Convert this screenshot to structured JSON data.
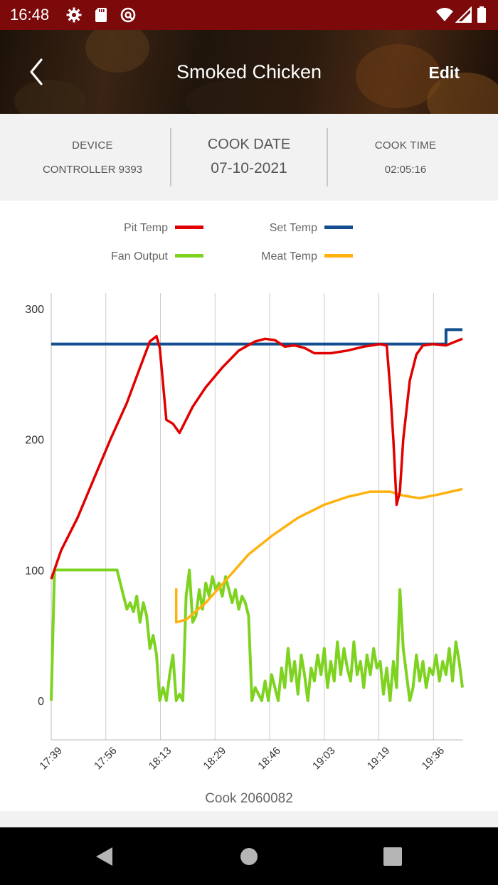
{
  "status_bar": {
    "time": "16:48"
  },
  "header": {
    "title": "Smoked Chicken",
    "edit_label": "Edit"
  },
  "info": {
    "device_label": "DEVICE",
    "device_value": "CONTROLLER 9393",
    "date_label": "COOK DATE",
    "date_value": "07-10-2021",
    "time_label": "COOK TIME",
    "time_value": "02:05:16"
  },
  "legend": [
    {
      "name": "Pit Temp",
      "color": "#e00000"
    },
    {
      "name": "Set Temp",
      "color": "#134f8f"
    },
    {
      "name": "Fan Output",
      "color": "#7ed321"
    },
    {
      "name": "Meat Temp",
      "color": "#ffb20f"
    }
  ],
  "chart_data": {
    "type": "line",
    "x_tick_labels": [
      "17:39",
      "17:56",
      "18:13",
      "18:29",
      "18:46",
      "19:03",
      "19:19",
      "19:36"
    ],
    "x_range_minutes": [
      0,
      125
    ],
    "y_ticks": [
      "0",
      "100",
      "200",
      "300"
    ],
    "ylim": [
      -30,
      312
    ],
    "grid": "vertical",
    "legend_position": "top",
    "series": [
      {
        "name": "Pit Temp",
        "color": "#e00000",
        "points": [
          [
            0,
            93
          ],
          [
            3,
            115
          ],
          [
            8,
            140
          ],
          [
            13,
            170
          ],
          [
            18,
            200
          ],
          [
            23,
            228
          ],
          [
            27,
            255
          ],
          [
            30,
            275
          ],
          [
            32,
            279
          ],
          [
            33,
            270
          ],
          [
            35,
            215
          ],
          [
            37,
            212
          ],
          [
            39,
            205
          ],
          [
            40,
            210
          ],
          [
            43,
            225
          ],
          [
            47,
            240
          ],
          [
            52,
            255
          ],
          [
            57,
            268
          ],
          [
            62,
            275
          ],
          [
            65,
            277
          ],
          [
            68,
            276
          ],
          [
            71,
            271
          ],
          [
            74,
            272
          ],
          [
            77,
            270
          ],
          [
            80,
            266
          ],
          [
            85,
            266
          ],
          [
            90,
            268
          ],
          [
            95,
            271
          ],
          [
            100,
            273
          ],
          [
            102,
            272
          ],
          [
            103,
            240
          ],
          [
            104,
            200
          ],
          [
            105,
            150
          ],
          [
            106,
            160
          ],
          [
            107,
            200
          ],
          [
            109,
            245
          ],
          [
            111,
            265
          ],
          [
            113,
            272
          ],
          [
            116,
            273
          ],
          [
            120,
            272
          ],
          [
            123,
            275
          ],
          [
            125,
            277
          ]
        ]
      },
      {
        "name": "Set Temp",
        "color": "#134f8f",
        "points": [
          [
            0,
            273
          ],
          [
            120,
            273
          ],
          [
            120,
            284
          ],
          [
            125,
            284
          ]
        ]
      },
      {
        "name": "Meat Temp",
        "color": "#ffb20f",
        "points": [
          [
            38,
            86
          ],
          [
            38,
            60
          ],
          [
            41,
            62
          ],
          [
            47,
            75
          ],
          [
            53,
            92
          ],
          [
            60,
            112
          ],
          [
            67,
            126
          ],
          [
            75,
            140
          ],
          [
            83,
            150
          ],
          [
            90,
            156
          ],
          [
            97,
            160
          ],
          [
            103,
            160
          ],
          [
            107,
            157
          ],
          [
            112,
            155
          ],
          [
            118,
            158
          ],
          [
            125,
            162
          ]
        ]
      },
      {
        "name": "Fan Output",
        "color": "#7ed321",
        "points": [
          [
            0,
            0
          ],
          [
            1,
            100
          ],
          [
            6,
            100
          ],
          [
            12,
            100
          ],
          [
            18,
            100
          ],
          [
            20,
            100
          ],
          [
            21,
            90
          ],
          [
            22,
            80
          ],
          [
            23,
            70
          ],
          [
            24,
            75
          ],
          [
            25,
            68
          ],
          [
            26,
            80
          ],
          [
            27,
            60
          ],
          [
            28,
            75
          ],
          [
            29,
            65
          ],
          [
            30,
            40
          ],
          [
            31,
            50
          ],
          [
            32,
            35
          ],
          [
            33,
            0
          ],
          [
            34,
            10
          ],
          [
            35,
            0
          ],
          [
            36,
            20
          ],
          [
            37,
            35
          ],
          [
            38,
            0
          ],
          [
            39,
            5
          ],
          [
            40,
            0
          ],
          [
            41,
            80
          ],
          [
            42,
            100
          ],
          [
            43,
            60
          ],
          [
            44,
            65
          ],
          [
            45,
            85
          ],
          [
            46,
            70
          ],
          [
            47,
            90
          ],
          [
            48,
            80
          ],
          [
            49,
            95
          ],
          [
            50,
            85
          ],
          [
            51,
            90
          ],
          [
            52,
            80
          ],
          [
            53,
            95
          ],
          [
            54,
            85
          ],
          [
            55,
            75
          ],
          [
            56,
            85
          ],
          [
            57,
            70
          ],
          [
            58,
            80
          ],
          [
            59,
            75
          ],
          [
            60,
            65
          ],
          [
            61,
            0
          ],
          [
            62,
            10
          ],
          [
            63,
            5
          ],
          [
            64,
            0
          ],
          [
            65,
            15
          ],
          [
            66,
            0
          ],
          [
            67,
            20
          ],
          [
            68,
            10
          ],
          [
            69,
            0
          ],
          [
            70,
            25
          ],
          [
            71,
            10
          ],
          [
            72,
            40
          ],
          [
            73,
            15
          ],
          [
            74,
            30
          ],
          [
            75,
            5
          ],
          [
            76,
            35
          ],
          [
            77,
            20
          ],
          [
            78,
            0
          ],
          [
            79,
            25
          ],
          [
            80,
            15
          ],
          [
            81,
            35
          ],
          [
            82,
            20
          ],
          [
            83,
            40
          ],
          [
            84,
            10
          ],
          [
            85,
            30
          ],
          [
            86,
            15
          ],
          [
            87,
            45
          ],
          [
            88,
            20
          ],
          [
            89,
            40
          ],
          [
            90,
            25
          ],
          [
            91,
            15
          ],
          [
            92,
            45
          ],
          [
            93,
            20
          ],
          [
            94,
            30
          ],
          [
            95,
            10
          ],
          [
            96,
            35
          ],
          [
            97,
            20
          ],
          [
            98,
            40
          ],
          [
            99,
            25
          ],
          [
            100,
            30
          ],
          [
            101,
            5
          ],
          [
            102,
            25
          ],
          [
            103,
            0
          ],
          [
            104,
            30
          ],
          [
            105,
            10
          ],
          [
            106,
            85
          ],
          [
            107,
            40
          ],
          [
            108,
            20
          ],
          [
            109,
            0
          ],
          [
            110,
            10
          ],
          [
            111,
            35
          ],
          [
            112,
            15
          ],
          [
            113,
            30
          ],
          [
            114,
            10
          ],
          [
            115,
            25
          ],
          [
            116,
            20
          ],
          [
            117,
            35
          ],
          [
            118,
            15
          ],
          [
            119,
            30
          ],
          [
            120,
            20
          ],
          [
            121,
            40
          ],
          [
            122,
            15
          ],
          [
            123,
            45
          ],
          [
            124,
            30
          ],
          [
            125,
            10
          ]
        ]
      }
    ]
  },
  "caption": "Cook 2060082",
  "colors": {
    "status_bar": "#7c0a0a",
    "info_background": "#f2f2f2"
  }
}
